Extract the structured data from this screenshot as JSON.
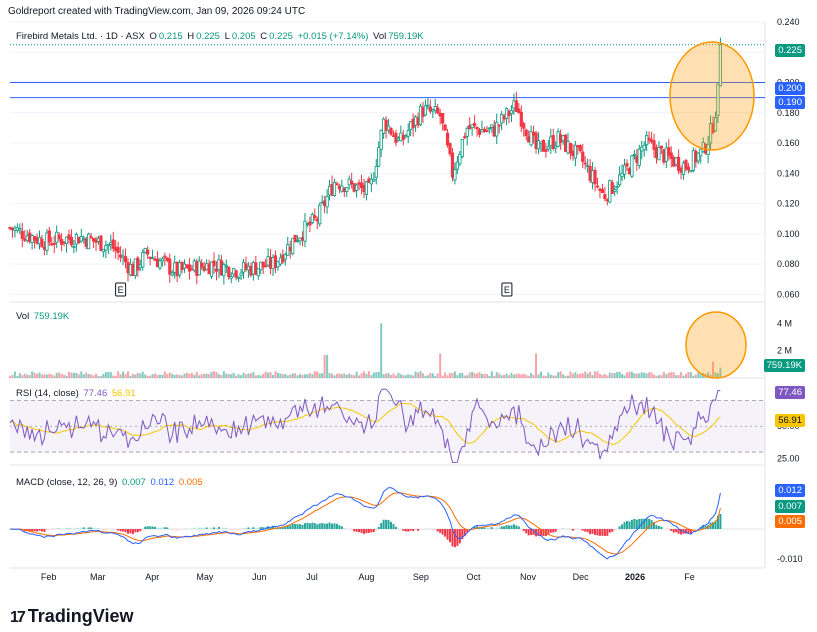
{
  "header": "Goldreport created with TradingView.com, Jan 09, 2026 09:24 UTC",
  "legend": {
    "symbol": "Firebird Metals Ltd. · 1D · ASX",
    "o_lbl": "O",
    "o": "0.215",
    "h_lbl": "H",
    "h": "0.225",
    "l_lbl": "L",
    "l": "0.205",
    "c_lbl": "C",
    "c": "0.225",
    "chg": "+0.015 (+7.14%)",
    "vol_lbl": "Vol",
    "vol": "759.19K"
  },
  "vol_legend": {
    "name": "Vol",
    "value": "759.19K"
  },
  "rsi_legend": {
    "name": "RSI (14, close)",
    "v1": "77.46",
    "v2": "56.91"
  },
  "macd_legend": {
    "name": "MACD (close, 12, 26, 9)",
    "v1": "0.007",
    "v2": "0.012",
    "v3": "0.005"
  },
  "price_labels": {
    "last": "0.225",
    "line1": "0.200",
    "line2": "0.190"
  },
  "vol_label": "759.19K",
  "rsi_labels": {
    "rsi": "77.46",
    "ma": "56.91"
  },
  "macd_labels": {
    "macd": "0.012",
    "signal": "0.007",
    "hist": "0.005"
  },
  "earnings_marker": "E",
  "logo_text": "TradingView",
  "colors": {
    "up": "#089981",
    "down": "#f23645",
    "hline": "#2962ff",
    "rsi": "#7e57c2",
    "rsi_ma": "#f7c600",
    "macd": "#2962ff",
    "signal": "#ff6d00",
    "circle": "#ff9800"
  },
  "chart_data": [
    {
      "type": "candlestick",
      "title": "Firebird Metals Ltd. · 1D · ASX",
      "ylim": [
        0.055,
        0.24
      ],
      "y_ticks": [
        0.06,
        0.08,
        0.1,
        0.12,
        0.14,
        0.16,
        0.18,
        0.2,
        0.22,
        0.24
      ],
      "x_ticks": [
        "Feb",
        "Mar",
        "Apr",
        "May",
        "Jun",
        "Jul",
        "Aug",
        "Sep",
        "Oct",
        "Nov",
        "Dec",
        "2026",
        "Fe"
      ],
      "horizontal_lines": [
        0.2,
        0.19
      ],
      "last_price": 0.225,
      "close_anchors": [
        {
          "d": 0,
          "v": 0.104
        },
        {
          "d": 20,
          "v": 0.095
        },
        {
          "d": 40,
          "v": 0.098
        },
        {
          "d": 58,
          "v": 0.092
        },
        {
          "d": 70,
          "v": 0.076
        },
        {
          "d": 78,
          "v": 0.087
        },
        {
          "d": 95,
          "v": 0.075
        },
        {
          "d": 115,
          "v": 0.08
        },
        {
          "d": 130,
          "v": 0.076
        },
        {
          "d": 150,
          "v": 0.08
        },
        {
          "d": 163,
          "v": 0.098
        },
        {
          "d": 175,
          "v": 0.11
        },
        {
          "d": 185,
          "v": 0.135
        },
        {
          "d": 205,
          "v": 0.128
        },
        {
          "d": 213,
          "v": 0.175
        },
        {
          "d": 222,
          "v": 0.16
        },
        {
          "d": 235,
          "v": 0.182
        },
        {
          "d": 245,
          "v": 0.178
        },
        {
          "d": 252,
          "v": 0.14
        },
        {
          "d": 260,
          "v": 0.17
        },
        {
          "d": 275,
          "v": 0.168
        },
        {
          "d": 288,
          "v": 0.185
        },
        {
          "d": 300,
          "v": 0.155
        },
        {
          "d": 312,
          "v": 0.163
        },
        {
          "d": 325,
          "v": 0.15
        },
        {
          "d": 338,
          "v": 0.125
        },
        {
          "d": 350,
          "v": 0.14
        },
        {
          "d": 362,
          "v": 0.16
        },
        {
          "d": 375,
          "v": 0.15
        },
        {
          "d": 385,
          "v": 0.145
        },
        {
          "d": 395,
          "v": 0.155
        },
        {
          "d": 400,
          "v": 0.17
        },
        {
          "d": 403,
          "v": 0.19
        },
        {
          "d": 405,
          "v": 0.225
        }
      ],
      "earnings_days": [
        63,
        283
      ]
    },
    {
      "type": "bar",
      "title": "Vol",
      "y_ticks_labels": [
        "4 M",
        "2 M"
      ],
      "y_ticks": [
        4000000,
        2000000
      ],
      "last": 759190,
      "spikes": [
        {
          "d": 212,
          "v": 4000000
        },
        {
          "d": 245,
          "v": 1800000
        },
        {
          "d": 180,
          "v": 1700000
        },
        {
          "d": 300,
          "v": 1800000
        },
        {
          "d": 404,
          "v": 1700000
        },
        {
          "d": 400,
          "v": 1200000
        }
      ]
    },
    {
      "type": "line",
      "title": "RSI (14, close)",
      "y_ticks": [
        25,
        50
      ],
      "band": [
        30,
        70
      ],
      "series": [
        {
          "name": "RSI",
          "last": 77.46
        },
        {
          "name": "MA",
          "last": 56.91
        }
      ]
    },
    {
      "type": "line",
      "title": "MACD (close, 12, 26, 9)",
      "y_ticks": [
        -0.01
      ],
      "series": [
        {
          "name": "MACD",
          "last": 0.012
        },
        {
          "name": "Signal",
          "last": 0.007
        },
        {
          "name": "Histogram",
          "last": 0.005
        }
      ]
    }
  ]
}
